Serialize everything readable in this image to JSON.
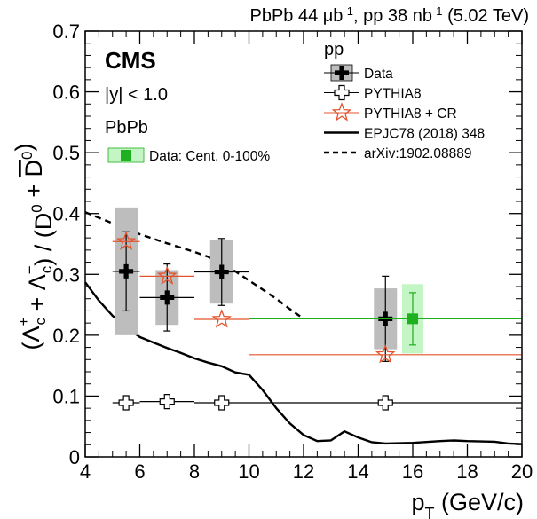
{
  "chart_data": {
    "type": "scatter",
    "header": "PbPb 44 μb⁻¹, pp 38 nb⁻¹ (5.02 TeV)",
    "xlabel": "pT (GeV/c)",
    "ylabel": "(Λc⁺ + Λc⁻) / (D⁰ + D̅⁰)",
    "xlim": [
      4,
      20
    ],
    "ylim": [
      0,
      0.7
    ],
    "xticks": [
      "4",
      "6",
      "8",
      "10",
      "12",
      "14",
      "16",
      "18",
      "20"
    ],
    "yticks": [
      "0",
      "0.1",
      "0.2",
      "0.3",
      "0.4",
      "0.5",
      "0.6",
      "0.7"
    ],
    "grid": false,
    "texts": {
      "experiment": "CMS",
      "rapidity": "|y| < 1.0",
      "pbpb_group": "PbPb",
      "pp_group": "pp"
    },
    "series": [
      {
        "name": "Data",
        "group": "pp",
        "marker": "filled-cross",
        "color": "#000000",
        "points": [
          {
            "x": 5.5,
            "y": 0.305,
            "xerr": 0.5,
            "stat": 0.065,
            "sys": 0.105
          },
          {
            "x": 7.0,
            "y": 0.262,
            "xerr": 1.0,
            "stat": 0.055,
            "sys": 0.045
          },
          {
            "x": 9.0,
            "y": 0.304,
            "xerr": 1.0,
            "stat": 0.055,
            "sys": 0.052
          },
          {
            "x": 15.0,
            "y": 0.227,
            "xerr": 5.0,
            "stat": 0.07,
            "sys": 0.05
          }
        ]
      },
      {
        "name": "PYTHIA8",
        "group": "pp",
        "marker": "open-cross",
        "color": "#000000",
        "points": [
          {
            "x": 5.5,
            "y": 0.089,
            "xerr": 0.5
          },
          {
            "x": 7.0,
            "y": 0.091,
            "xerr": 1.0
          },
          {
            "x": 9.0,
            "y": 0.089,
            "xerr": 1.0
          },
          {
            "x": 15.0,
            "y": 0.089,
            "xerr": 5.0
          }
        ]
      },
      {
        "name": "PYTHIA8 + CR",
        "group": "pp",
        "marker": "open-star",
        "color": "#e4532b",
        "points": [
          {
            "x": 5.5,
            "y": 0.354,
            "xerr": 0.5
          },
          {
            "x": 7.0,
            "y": 0.297,
            "xerr": 1.0
          },
          {
            "x": 9.0,
            "y": 0.226,
            "xerr": 1.0
          },
          {
            "x": 15.0,
            "y": 0.168,
            "xerr": 5.0
          }
        ]
      },
      {
        "name": "Data: Cent. 0-100%",
        "group": "PbPb",
        "marker": "filled-square",
        "color": "#1fb01f",
        "points": [
          {
            "x": 16.0,
            "y": 0.227,
            "xerr_low": 6.0,
            "xerr_high": 4.0,
            "stat": 0.043,
            "sys": 0.057
          }
        ]
      },
      {
        "name": "EPJC78 (2018) 348",
        "group": "pp",
        "style": "solid",
        "color": "#000000",
        "x": [
          4.0,
          4.5,
          5.0,
          5.5,
          6.0,
          6.5,
          7.0,
          7.5,
          8.0,
          8.5,
          9.0,
          9.5,
          10.0,
          10.5,
          11.0,
          11.5,
          12.0,
          12.5,
          13.0,
          13.5,
          14.0,
          14.5,
          15.0,
          16.0,
          17.0,
          17.5,
          18.0,
          19.0,
          19.5,
          20.0
        ],
        "y": [
          0.287,
          0.257,
          0.232,
          0.213,
          0.197,
          0.188,
          0.179,
          0.171,
          0.162,
          0.155,
          0.149,
          0.139,
          0.135,
          0.11,
          0.08,
          0.055,
          0.036,
          0.026,
          0.027,
          0.042,
          0.032,
          0.024,
          0.022,
          0.023,
          0.026,
          0.027,
          0.026,
          0.025,
          0.022,
          0.021
        ]
      },
      {
        "name": "arXiv:1902.08889",
        "group": "pp",
        "style": "dashed",
        "color": "#000000",
        "x": [
          4.0,
          5.0,
          6.0,
          7.0,
          8.0,
          8.5,
          9.0,
          9.5,
          10.0,
          10.5,
          11.0,
          11.5,
          12.0
        ],
        "y": [
          0.402,
          0.384,
          0.366,
          0.351,
          0.337,
          0.329,
          0.318,
          0.305,
          0.29,
          0.275,
          0.26,
          0.243,
          0.227
        ]
      }
    ],
    "legend": {
      "pp_entries": [
        "Data",
        "PYTHIA8",
        "PYTHIA8 + CR",
        "EPJC78 (2018) 348",
        "arXiv:1902.08889"
      ],
      "pbpb_entries": [
        "Data: Cent. 0-100%"
      ]
    }
  }
}
